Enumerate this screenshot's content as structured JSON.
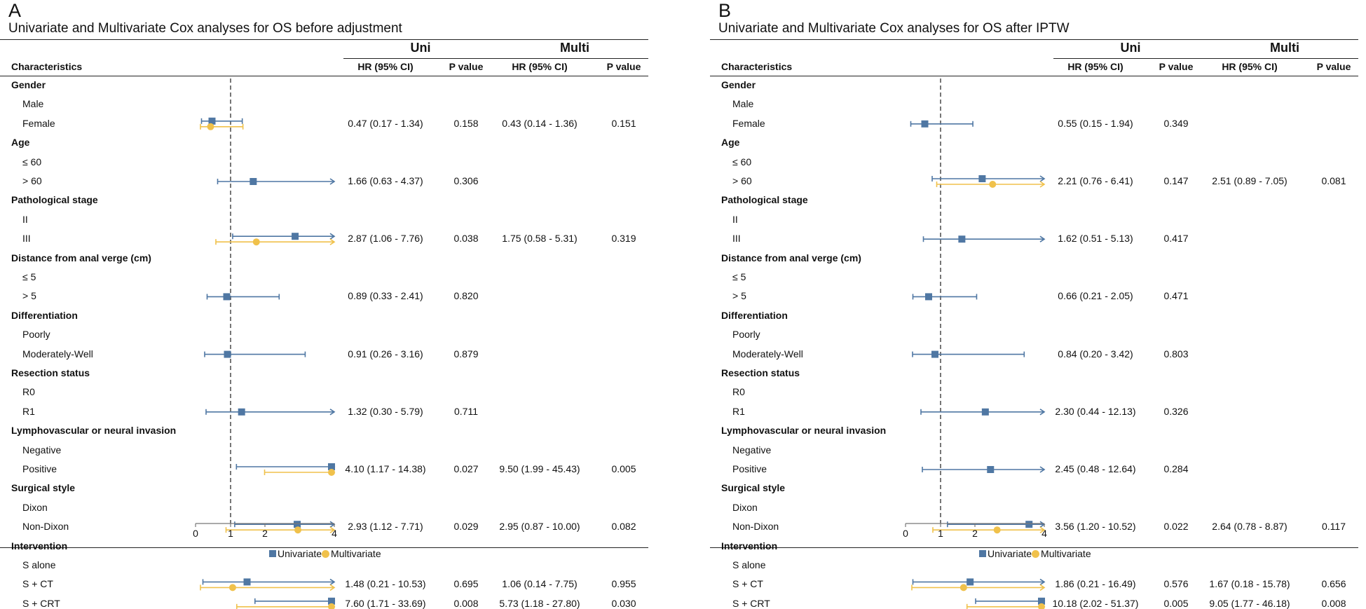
{
  "colors": {
    "uni": "#4f77a3",
    "multi": "#f0c14b",
    "ref_line": "#555555",
    "rule": "#222222"
  },
  "legend": {
    "uni": "Univariate",
    "multi": "Multivariate"
  },
  "headers": {
    "uni_group": "Uni",
    "multi_group": "Multi",
    "characteristics": "Characteristics",
    "hr": "HR (95% CI)",
    "p": "P value"
  },
  "chart_data": [
    {
      "type": "forest",
      "panel_letter": "A",
      "title": "Univariate and Multivariate Cox analyses for OS before adjustment",
      "xlim": [
        0,
        4
      ],
      "reference": 1,
      "ticks": [
        "0",
        "1",
        "2",
        "4"
      ],
      "rows": [
        {
          "label": "Gender",
          "category": true
        },
        {
          "label": "Male"
        },
        {
          "label": "Female",
          "uni": {
            "hr": 0.47,
            "lo": 0.17,
            "hi": 1.34,
            "text": "0.47 (0.17 - 1.34)",
            "p": "0.158"
          },
          "multi": {
            "hr": 0.43,
            "lo": 0.14,
            "hi": 1.36,
            "text": "0.43 (0.14 - 1.36)",
            "p": "0.151"
          }
        },
        {
          "label": "Age",
          "category": true
        },
        {
          "label": "≤ 60"
        },
        {
          "label": "> 60",
          "uni": {
            "hr": 1.66,
            "lo": 0.63,
            "hi": 4.37,
            "text": "1.66 (0.63 - 4.37)",
            "p": "0.306"
          }
        },
        {
          "label": "Pathological stage",
          "category": true
        },
        {
          "label": "II"
        },
        {
          "label": "III",
          "uni": {
            "hr": 2.87,
            "lo": 1.06,
            "hi": 7.76,
            "text": "2.87 (1.06 - 7.76)",
            "p": "0.038"
          },
          "multi": {
            "hr": 1.75,
            "lo": 0.58,
            "hi": 5.31,
            "text": "1.75 (0.58 - 5.31)",
            "p": "0.319"
          }
        },
        {
          "label": "Distance from anal verge (cm)",
          "category": true
        },
        {
          "label": "≤ 5"
        },
        {
          "label": "> 5",
          "uni": {
            "hr": 0.89,
            "lo": 0.33,
            "hi": 2.41,
            "text": "0.89 (0.33 - 2.41)",
            "p": "0.820"
          }
        },
        {
          "label": "Differentiation",
          "category": true
        },
        {
          "label": "Poorly"
        },
        {
          "label": "Moderately-Well",
          "uni": {
            "hr": 0.91,
            "lo": 0.26,
            "hi": 3.16,
            "text": "0.91 (0.26 - 3.16)",
            "p": "0.879"
          }
        },
        {
          "label": "Resection status",
          "category": true
        },
        {
          "label": "R0"
        },
        {
          "label": "R1",
          "uni": {
            "hr": 1.32,
            "lo": 0.3,
            "hi": 5.79,
            "text": "1.32 (0.30 - 5.79)",
            "p": "0.711"
          }
        },
        {
          "label": "Lymphovascular or neural invasion",
          "category": true
        },
        {
          "label": "Negative"
        },
        {
          "label": "Positive",
          "uni": {
            "hr": 4.1,
            "lo": 1.17,
            "hi": 14.38,
            "text": "4.10 (1.17 - 14.38)",
            "p": "0.027"
          },
          "multi": {
            "hr": 9.5,
            "lo": 1.99,
            "hi": 45.43,
            "text": "9.50 (1.99 - 45.43)",
            "p": "0.005"
          }
        },
        {
          "label": "Surgical style",
          "category": true
        },
        {
          "label": "Dixon"
        },
        {
          "label": "Non-Dixon",
          "uni": {
            "hr": 2.93,
            "lo": 1.12,
            "hi": 7.71,
            "text": "2.93 (1.12 - 7.71)",
            "p": "0.029"
          },
          "multi": {
            "hr": 2.95,
            "lo": 0.87,
            "hi": 10.0,
            "text": "2.95 (0.87 - 10.00)",
            "p": "0.082"
          }
        },
        {
          "label": "Intervention",
          "category": true
        },
        {
          "label": "S alone"
        },
        {
          "label": "S + CT",
          "uni": {
            "hr": 1.48,
            "lo": 0.21,
            "hi": 10.53,
            "text": "1.48 (0.21 - 10.53)",
            "p": "0.695"
          },
          "multi": {
            "hr": 1.06,
            "lo": 0.14,
            "hi": 7.75,
            "text": "1.06 (0.14 - 7.75)",
            "p": "0.955"
          }
        },
        {
          "label": "S + CRT",
          "uni": {
            "hr": 7.6,
            "lo": 1.71,
            "hi": 33.69,
            "text": "7.60 (1.71 - 33.69)",
            "p": "0.008"
          },
          "multi": {
            "hr": 5.73,
            "lo": 1.18,
            "hi": 27.8,
            "text": "5.73 (1.18 - 27.80)",
            "p": "0.030"
          }
        }
      ]
    },
    {
      "type": "forest",
      "panel_letter": "B",
      "title": "Univariate and Multivariate Cox analyses for OS after IPTW",
      "xlim": [
        0,
        4
      ],
      "reference": 1,
      "ticks": [
        "0",
        "1",
        "2",
        "4"
      ],
      "rows": [
        {
          "label": "Gender",
          "category": true
        },
        {
          "label": "Male"
        },
        {
          "label": "Female",
          "uni": {
            "hr": 0.55,
            "lo": 0.15,
            "hi": 1.94,
            "text": "0.55 (0.15 - 1.94)",
            "p": "0.349"
          }
        },
        {
          "label": "Age",
          "category": true
        },
        {
          "label": "≤ 60"
        },
        {
          "label": "> 60",
          "uni": {
            "hr": 2.21,
            "lo": 0.76,
            "hi": 6.41,
            "text": "2.21 (0.76 - 6.41)",
            "p": "0.147"
          },
          "multi": {
            "hr": 2.51,
            "lo": 0.89,
            "hi": 7.05,
            "text": "2.51 (0.89 - 7.05)",
            "p": "0.081"
          }
        },
        {
          "label": "Pathological stage",
          "category": true
        },
        {
          "label": "II"
        },
        {
          "label": "III",
          "uni": {
            "hr": 1.62,
            "lo": 0.51,
            "hi": 5.13,
            "text": "1.62 (0.51 - 5.13)",
            "p": "0.417"
          }
        },
        {
          "label": "Distance from anal verge (cm)",
          "category": true
        },
        {
          "label": "≤ 5"
        },
        {
          "label": "> 5",
          "uni": {
            "hr": 0.66,
            "lo": 0.21,
            "hi": 2.05,
            "text": "0.66 (0.21 - 2.05)",
            "p": "0.471"
          }
        },
        {
          "label": "Differentiation",
          "category": true
        },
        {
          "label": "Poorly"
        },
        {
          "label": "Moderately-Well",
          "uni": {
            "hr": 0.84,
            "lo": 0.2,
            "hi": 3.42,
            "text": "0.84 (0.20 - 3.42)",
            "p": "0.803"
          }
        },
        {
          "label": "Resection status",
          "category": true
        },
        {
          "label": "R0"
        },
        {
          "label": "R1",
          "uni": {
            "hr": 2.3,
            "lo": 0.44,
            "hi": 12.13,
            "text": "2.30 (0.44 - 12.13)",
            "p": "0.326"
          }
        },
        {
          "label": "Lymphovascular or neural invasion",
          "category": true
        },
        {
          "label": "Negative"
        },
        {
          "label": "Positive",
          "uni": {
            "hr": 2.45,
            "lo": 0.48,
            "hi": 12.64,
            "text": "2.45 (0.48 - 12.64)",
            "p": "0.284"
          }
        },
        {
          "label": "Surgical style",
          "category": true
        },
        {
          "label": "Dixon"
        },
        {
          "label": "Non-Dixon",
          "uni": {
            "hr": 3.56,
            "lo": 1.2,
            "hi": 10.52,
            "text": "3.56 (1.20 - 10.52)",
            "p": "0.022"
          },
          "multi": {
            "hr": 2.64,
            "lo": 0.78,
            "hi": 8.87,
            "text": "2.64 (0.78 - 8.87)",
            "p": "0.117"
          }
        },
        {
          "label": "Intervention",
          "category": true
        },
        {
          "label": "S alone"
        },
        {
          "label": "S + CT",
          "uni": {
            "hr": 1.86,
            "lo": 0.21,
            "hi": 16.49,
            "text": "1.86 (0.21 - 16.49)",
            "p": "0.576"
          },
          "multi": {
            "hr": 1.67,
            "lo": 0.18,
            "hi": 15.78,
            "text": "1.67 (0.18 - 15.78)",
            "p": "0.656"
          }
        },
        {
          "label": "S + CRT",
          "uni": {
            "hr": 10.18,
            "lo": 2.02,
            "hi": 51.37,
            "text": "10.18 (2.02 - 51.37)",
            "p": "0.005"
          },
          "multi": {
            "hr": 9.05,
            "lo": 1.77,
            "hi": 46.18,
            "text": "9.05 (1.77 - 46.18)",
            "p": "0.008"
          }
        }
      ]
    }
  ]
}
